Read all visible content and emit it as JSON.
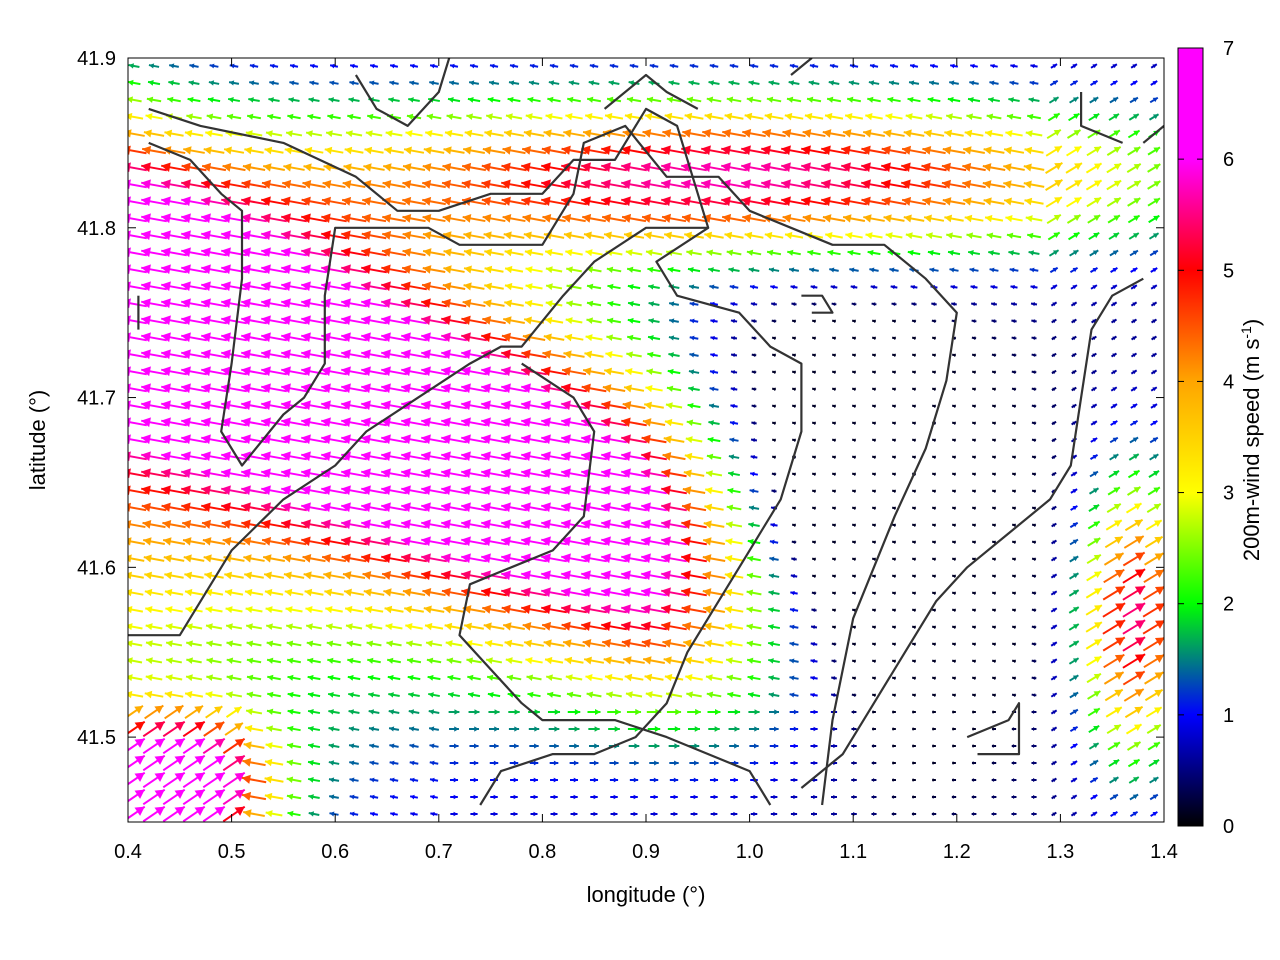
{
  "chart_data": {
    "type": "vector-field",
    "title": "",
    "xlabel": "longitude (°)",
    "ylabel": "latitude (°)",
    "xlim": [
      0.4,
      1.4
    ],
    "ylim": [
      41.45,
      41.9
    ],
    "x_ticks": [
      0.4,
      0.5,
      0.6,
      0.7,
      0.8,
      0.9,
      1.0,
      1.1,
      1.2,
      1.3,
      1.4
    ],
    "x_tick_labels": [
      "0.4",
      "0.5",
      "0.6",
      "0.7",
      "0.8",
      "0.9",
      "1.0",
      "1.1",
      "1.2",
      "1.3",
      "1.4"
    ],
    "y_ticks": [
      41.5,
      41.6,
      41.7,
      41.8,
      41.9
    ],
    "y_tick_labels": [
      "41.5",
      "41.6",
      "41.7",
      "41.8",
      "41.9"
    ],
    "colorbar": {
      "label": "200m-wind speed (m s-1)",
      "label_main": "200m-wind speed (m s",
      "label_sup": "-1",
      "label_end": ")",
      "range": [
        0,
        7
      ],
      "ticks": [
        0,
        1,
        2,
        3,
        4,
        5,
        6,
        7
      ],
      "tick_labels": [
        "0",
        "1",
        "2",
        "3",
        "4",
        "5",
        "6",
        "7"
      ],
      "colors": [
        "#000000",
        "#0000ff",
        "#00ff00",
        "#ffff00",
        "#ffa500",
        "#ff0000",
        "#ff00ff"
      ]
    },
    "contours": [
      [
        [
          0.42,
          41.87
        ],
        [
          0.47,
          41.86
        ],
        [
          0.55,
          41.85
        ],
        [
          0.62,
          41.83
        ],
        [
          0.66,
          41.81
        ],
        [
          0.7,
          41.81
        ],
        [
          0.75,
          41.82
        ],
        [
          0.8,
          41.82
        ],
        [
          0.83,
          41.84
        ],
        [
          0.87,
          41.84
        ],
        [
          0.9,
          41.87
        ],
        [
          0.93,
          41.86
        ],
        [
          0.96,
          41.8
        ],
        [
          0.9,
          41.8
        ],
        [
          0.85,
          41.78
        ],
        [
          0.82,
          41.76
        ],
        [
          0.78,
          41.73
        ],
        [
          0.76,
          41.73
        ],
        [
          0.73,
          41.72
        ],
        [
          0.68,
          41.7
        ],
        [
          0.63,
          41.68
        ],
        [
          0.6,
          41.66
        ],
        [
          0.55,
          41.64
        ],
        [
          0.5,
          41.61
        ],
        [
          0.47,
          41.58
        ],
        [
          0.45,
          41.56
        ],
        [
          0.4,
          41.56
        ]
      ],
      [
        [
          0.42,
          41.85
        ],
        [
          0.46,
          41.84
        ],
        [
          0.49,
          41.82
        ],
        [
          0.51,
          41.81
        ],
        [
          0.51,
          41.77
        ],
        [
          0.5,
          41.72
        ],
        [
          0.49,
          41.68
        ],
        [
          0.51,
          41.66
        ],
        [
          0.55,
          41.69
        ],
        [
          0.57,
          41.7
        ],
        [
          0.59,
          41.72
        ],
        [
          0.59,
          41.76
        ],
        [
          0.6,
          41.8
        ],
        [
          0.64,
          41.8
        ],
        [
          0.69,
          41.8
        ],
        [
          0.72,
          41.79
        ],
        [
          0.76,
          41.79
        ],
        [
          0.8,
          41.79
        ],
        [
          0.83,
          41.82
        ],
        [
          0.84,
          41.85
        ],
        [
          0.88,
          41.86
        ],
        [
          0.92,
          41.83
        ],
        [
          0.97,
          41.83
        ],
        [
          1.0,
          41.81
        ],
        [
          1.04,
          41.8
        ],
        [
          1.08,
          41.79
        ],
        [
          1.13,
          41.79
        ],
        [
          1.17,
          41.77
        ],
        [
          1.2,
          41.75
        ],
        [
          1.19,
          41.71
        ],
        [
          1.17,
          41.67
        ],
        [
          1.14,
          41.63
        ],
        [
          1.1,
          41.57
        ],
        [
          1.08,
          41.51
        ],
        [
          1.07,
          41.46
        ]
      ],
      [
        [
          0.86,
          41.87
        ],
        [
          0.9,
          41.89
        ],
        [
          0.92,
          41.88
        ],
        [
          0.95,
          41.87
        ]
      ],
      [
        [
          0.62,
          41.89
        ],
        [
          0.64,
          41.87
        ],
        [
          0.67,
          41.86
        ],
        [
          0.7,
          41.88
        ],
        [
          0.71,
          41.9
        ]
      ],
      [
        [
          0.96,
          41.8
        ],
        [
          0.91,
          41.78
        ],
        [
          0.93,
          41.76
        ],
        [
          0.99,
          41.75
        ],
        [
          1.02,
          41.73
        ],
        [
          1.05,
          41.72
        ],
        [
          1.05,
          41.68
        ],
        [
          1.03,
          41.64
        ],
        [
          1.0,
          41.61
        ],
        [
          0.97,
          41.58
        ],
        [
          0.94,
          41.55
        ],
        [
          0.92,
          41.52
        ],
        [
          0.89,
          41.5
        ],
        [
          0.85,
          41.49
        ],
        [
          0.81,
          41.49
        ],
        [
          0.76,
          41.48
        ],
        [
          0.74,
          41.46
        ]
      ],
      [
        [
          0.78,
          41.72
        ],
        [
          0.83,
          41.7
        ],
        [
          0.85,
          41.68
        ],
        [
          0.84,
          41.63
        ],
        [
          0.81,
          41.61
        ],
        [
          0.77,
          41.6
        ],
        [
          0.73,
          41.59
        ],
        [
          0.72,
          41.56
        ],
        [
          0.75,
          41.54
        ],
        [
          0.78,
          41.52
        ],
        [
          0.8,
          41.51
        ],
        [
          0.87,
          41.51
        ],
        [
          0.92,
          41.5
        ],
        [
          0.96,
          41.49
        ],
        [
          1.0,
          41.48
        ],
        [
          1.02,
          41.46
        ]
      ],
      [
        [
          1.38,
          41.77
        ],
        [
          1.35,
          41.76
        ],
        [
          1.33,
          41.74
        ],
        [
          1.32,
          41.7
        ],
        [
          1.31,
          41.66
        ],
        [
          1.29,
          41.64
        ],
        [
          1.25,
          41.62
        ],
        [
          1.21,
          41.6
        ],
        [
          1.18,
          41.58
        ],
        [
          1.15,
          41.55
        ],
        [
          1.12,
          41.52
        ],
        [
          1.09,
          41.49
        ],
        [
          1.05,
          41.47
        ]
      ],
      [
        [
          1.21,
          41.5
        ],
        [
          1.25,
          41.51
        ],
        [
          1.26,
          41.52
        ],
        [
          1.26,
          41.49
        ],
        [
          1.22,
          41.49
        ]
      ],
      [
        [
          1.05,
          41.76
        ],
        [
          1.07,
          41.76
        ],
        [
          1.08,
          41.75
        ],
        [
          1.06,
          41.75
        ]
      ],
      [
        [
          1.04,
          41.89
        ],
        [
          1.06,
          41.9
        ]
      ],
      [
        [
          1.32,
          41.88
        ],
        [
          1.32,
          41.86
        ],
        [
          1.36,
          41.85
        ]
      ],
      [
        [
          1.4,
          41.86
        ],
        [
          1.38,
          41.85
        ]
      ],
      [
        [
          0.41,
          41.76
        ],
        [
          0.41,
          41.74
        ]
      ]
    ]
  }
}
